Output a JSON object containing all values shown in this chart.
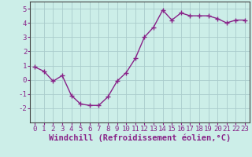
{
  "x": [
    0,
    1,
    2,
    3,
    4,
    5,
    6,
    7,
    8,
    9,
    10,
    11,
    12,
    13,
    14,
    15,
    16,
    17,
    18,
    19,
    20,
    21,
    22,
    23
  ],
  "y": [
    0.9,
    0.6,
    -0.1,
    0.3,
    -1.1,
    -1.7,
    -1.8,
    -1.8,
    -1.2,
    -0.1,
    0.5,
    1.5,
    3.0,
    3.7,
    4.9,
    4.2,
    4.7,
    4.5,
    4.5,
    4.5,
    4.3,
    4.0,
    4.2,
    4.2
  ],
  "line_color": "#882288",
  "marker": "+",
  "marker_size": 4,
  "background_color": "#cceee8",
  "grid_color": "#aacccc",
  "xlabel": "Windchill (Refroidissement éolien,°C)",
  "ylim": [
    -3,
    5.5
  ],
  "xlim": [
    -0.5,
    23.5
  ],
  "yticks": [
    -2,
    -1,
    0,
    1,
    2,
    3,
    4,
    5
  ],
  "xticks": [
    0,
    1,
    2,
    3,
    4,
    5,
    6,
    7,
    8,
    9,
    10,
    11,
    12,
    13,
    14,
    15,
    16,
    17,
    18,
    19,
    20,
    21,
    22,
    23
  ],
  "tick_label_fontsize": 6.5,
  "xlabel_fontsize": 7.5,
  "line_width": 1.0,
  "spine_color": "#444444"
}
